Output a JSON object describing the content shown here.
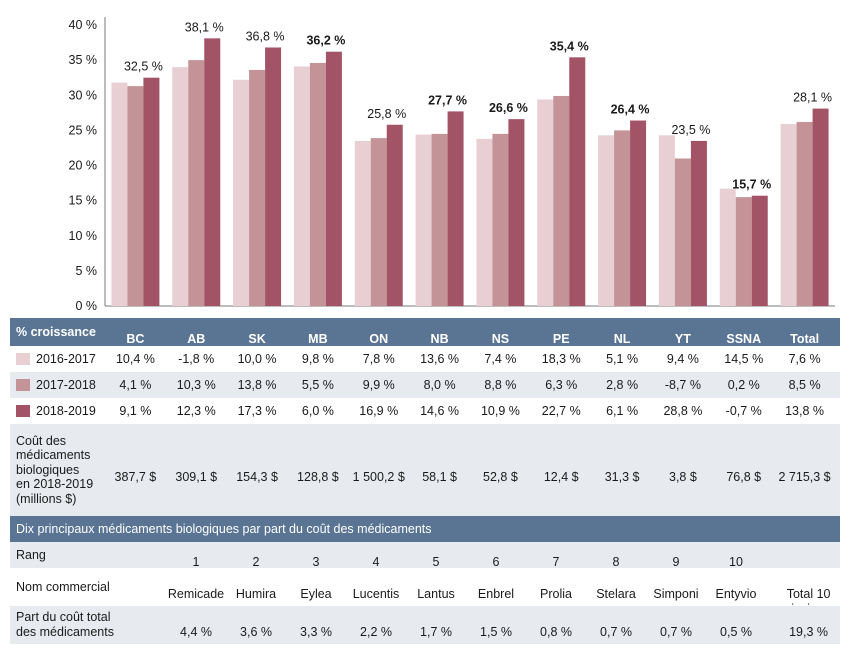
{
  "chart_data": {
    "type": "bar",
    "categories": [
      "BC",
      "AB",
      "SK",
      "MB",
      "ON",
      "NB",
      "NS",
      "PE",
      "NL",
      "YT",
      "SSNA",
      "Total"
    ],
    "series": [
      {
        "name": "2016-2017",
        "color": "#e8cfd3",
        "values": [
          31.8,
          34.0,
          32.2,
          34.1,
          23.5,
          24.4,
          23.8,
          29.4,
          24.3,
          24.3,
          16.7,
          25.9
        ]
      },
      {
        "name": "2017-2018",
        "color": "#c49398",
        "values": [
          31.3,
          35.0,
          33.6,
          34.6,
          23.9,
          24.5,
          24.5,
          29.9,
          25.0,
          21.0,
          15.5,
          26.2
        ]
      },
      {
        "name": "2018-2019",
        "color": "#a35366",
        "values": [
          32.5,
          38.1,
          36.8,
          36.2,
          25.8,
          27.7,
          26.6,
          35.4,
          26.4,
          23.5,
          15.7,
          28.1
        ]
      }
    ],
    "data_labels": [
      "32,5 %",
      "38,1 %",
      "36,8 %",
      "36,2 %",
      "25,8 %",
      "27,7 %",
      "26,6 %",
      "35,4 %",
      "26,4 %",
      "23,5 %",
      "15,7 %",
      "28,1 %"
    ],
    "data_label_bold": [
      false,
      false,
      false,
      true,
      false,
      true,
      true,
      true,
      true,
      false,
      true,
      false
    ],
    "y_ticks": [
      "0 %",
      "5 %",
      "10 %",
      "15 %",
      "20 %",
      "25 %",
      "30 %",
      "35 %",
      "40 %"
    ],
    "ylim": [
      0,
      40
    ],
    "ylabel": "",
    "xlabel": ""
  },
  "table": {
    "header_label": "% croissance",
    "growth_rows": [
      {
        "label": "2016-2017",
        "values": [
          "10,4 %",
          "-1,8 %",
          "10,0 %",
          "9,8 %",
          "7,8 %",
          "13,6 %",
          "7,4 %",
          "18,3 %",
          "5,1 %",
          "9,4 %",
          "14,5 %",
          "7,6 %"
        ]
      },
      {
        "label": "2017-2018",
        "values": [
          "4,1 %",
          "10,3 %",
          "13,8 %",
          "5,5 %",
          "9,9 %",
          "8,0 %",
          "8,8 %",
          "6,3 %",
          "2,8 %",
          "-8,7 %",
          "0,2 %",
          "8,5 %"
        ]
      },
      {
        "label": "2018-2019",
        "values": [
          "9,1 %",
          "12,3 %",
          "17,3 %",
          "6,0 %",
          "16,9 %",
          "14,6 %",
          "10,9 %",
          "22,7 %",
          "6,1 %",
          "28,8 %",
          "-0,7 %",
          "13,8 %"
        ]
      }
    ],
    "cost_label_lines": [
      "Coût des",
      "médicaments",
      "biologiques",
      "en 2018-2019",
      "(millions $)"
    ],
    "cost_values": [
      "387,7 $",
      "309,1 $",
      "154,3 $",
      "128,8 $",
      "1 500,2 $",
      "58,1 $",
      "52,8 $",
      "12,4 $",
      "31,3 $",
      "3,8 $",
      "76,8 $",
      "2 715,3 $"
    ],
    "top10_title": "Dix principaux médicaments biologiques par part du coût des médicaments",
    "rank_label": "Rang",
    "ranks": [
      "1",
      "2",
      "3",
      "4",
      "5",
      "6",
      "7",
      "8",
      "9",
      "10"
    ],
    "name_label": "Nom commercial",
    "names": [
      "Remicade",
      "Humira",
      "Eylea",
      "Lucentis",
      "Lantus",
      "Enbrel",
      "Prolia",
      "Stelara",
      "Simponi",
      "Entyvio"
    ],
    "total_name_lines": [
      "Total 10",
      "principaux"
    ],
    "share_label_lines": [
      "Part du coût total",
      "des médicaments"
    ],
    "shares": [
      "4,4 %",
      "3,6 %",
      "3,3 %",
      "2,2 %",
      "1,7 %",
      "1,5 %",
      "0,8 %",
      "0,7 %",
      "0,7 %",
      "0,5 %"
    ],
    "share_total": "19,3 %"
  }
}
